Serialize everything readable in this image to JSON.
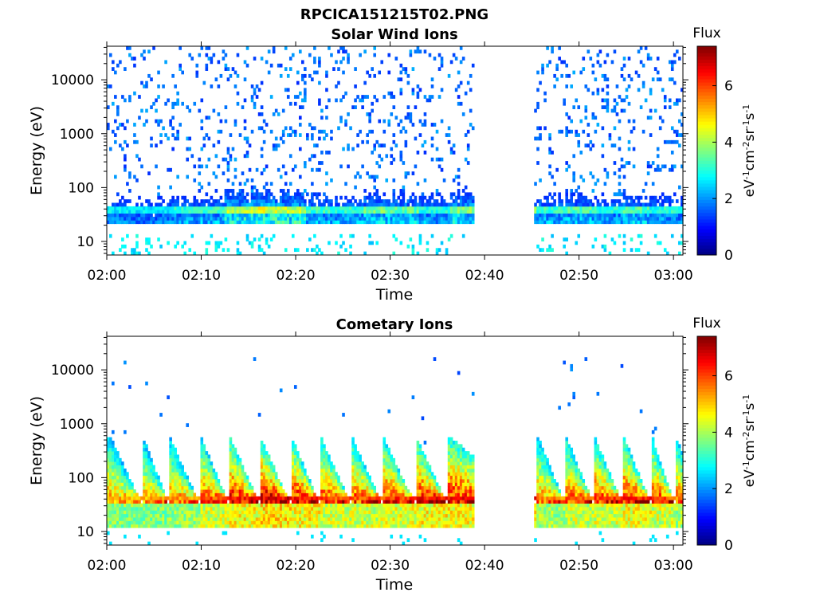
{
  "figure_title": "RPCICA151215T02.PNG",
  "colors": {
    "colormap": [
      "#00008f",
      "#0000ff",
      "#0080ff",
      "#00ffff",
      "#80ff80",
      "#ffff00",
      "#ff8000",
      "#ff0000",
      "#800000"
    ],
    "axes": "#000000",
    "background": "#ffffff"
  },
  "chart_data": [
    {
      "type": "heatmap",
      "title": "Solar Wind Ions",
      "xlabel": "Time",
      "ylabel": "Energy (eV)",
      "xticks": [
        "02:00",
        "02:10",
        "02:20",
        "02:30",
        "02:40",
        "02:50",
        "03:00"
      ],
      "xlim_minutes": [
        0,
        61
      ],
      "yscale": "log",
      "ylim": [
        5.6,
        42000
      ],
      "yticks": [
        "10",
        "100",
        "1000",
        "10000"
      ],
      "data_gap_minutes": [
        39,
        45.3
      ],
      "colorbar": {
        "title": "Flux",
        "unit": "eV-1cm-2sr-1s-1",
        "range": [
          0,
          7.4
        ],
        "ticks": [
          "0",
          "2",
          "4",
          "6"
        ]
      },
      "cycle_starts_minutes": [
        0.2,
        3.2,
        6.5,
        9.8,
        12.5,
        15.2,
        18.3,
        21.2,
        24.1,
        27.1,
        30.2,
        33.1,
        36.4,
        45.5,
        48.6,
        51.6,
        54.7,
        57.5,
        60.1
      ],
      "cycle_peak_flux": [
        3.0,
        3.0,
        3.4,
        3.6,
        4.6,
        4.9,
        4.6,
        3.6,
        3.5,
        4.1,
        3.9,
        3.4,
        4.3,
        3.6,
        3.8,
        3.4,
        3.8,
        3.4,
        3.3
      ]
    },
    {
      "type": "heatmap",
      "title": "Cometary Ions",
      "xlabel": "Time",
      "ylabel": "Energy (eV)",
      "xticks": [
        "02:00",
        "02:10",
        "02:20",
        "02:30",
        "02:40",
        "02:50",
        "03:00"
      ],
      "xlim_minutes": [
        0,
        61
      ],
      "yscale": "log",
      "ylim": [
        5.6,
        42000
      ],
      "yticks": [
        "10",
        "100",
        "1000",
        "10000"
      ],
      "data_gap_minutes": [
        39,
        45.3
      ],
      "colorbar": {
        "title": "Flux",
        "unit": "eV-1cm-2sr-1s-1",
        "range": [
          0,
          7.4
        ],
        "ticks": [
          "0",
          "2",
          "4",
          "6"
        ]
      },
      "cycle_starts_minutes": [
        0.3,
        3.8,
        6.6,
        9.9,
        13.0,
        16.2,
        19.5,
        22.6,
        25.9,
        29.2,
        32.7,
        36.1,
        45.6,
        48.6,
        51.6,
        54.7,
        57.7,
        60.2
      ],
      "cycle_peak_flux": [
        5.6,
        5.6,
        5.8,
        6.4,
        6.9,
        7.2,
        6.9,
        6.4,
        6.4,
        6.6,
        6.9,
        6.9,
        5.9,
        6.3,
        6.5,
        6.8,
        6.4,
        6.0
      ]
    }
  ]
}
